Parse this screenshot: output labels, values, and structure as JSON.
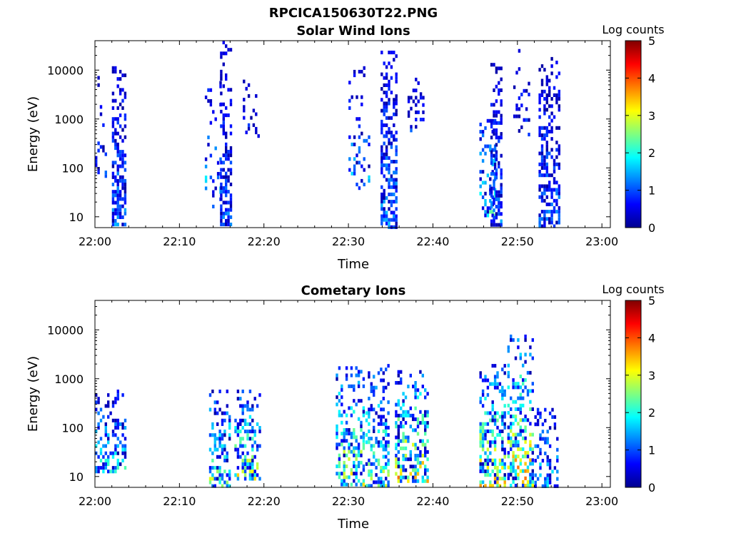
{
  "figure": {
    "title": "RPCICA150630T22.PNG"
  },
  "chart_data": [
    {
      "type": "heatmap",
      "title": "Solar Wind Ions",
      "xlabel": "Time",
      "ylabel": "Energy (eV)",
      "x_ticks": [
        "22:00",
        "22:10",
        "22:20",
        "22:30",
        "22:40",
        "22:50",
        "23:00"
      ],
      "x_range_min": [
        0,
        61
      ],
      "y_scale": "log",
      "y_ticks": [
        "10",
        "100",
        "1000",
        "10000"
      ],
      "y_range_eV": [
        6,
        40000
      ],
      "colorbar": {
        "label": "Log counts",
        "ticks": [
          "0",
          "1",
          "2",
          "3",
          "4",
          "5"
        ],
        "range": [
          0,
          5
        ],
        "colormap": "jet"
      },
      "bursts": [
        {
          "t_min": 0.0,
          "t_max": 1.5,
          "e_min": 60,
          "e_max": 9000,
          "peak": 1.2,
          "density": 0.12,
          "seed": 11
        },
        {
          "t_min": 2.0,
          "t_max": 3.6,
          "e_min": 6,
          "e_max": 12000,
          "peak": 1.4,
          "density": 0.55,
          "seed": 12
        },
        {
          "t_min": 13.0,
          "t_max": 15.0,
          "e_min": 15,
          "e_max": 6000,
          "peak": 2.0,
          "density": 0.15,
          "seed": 13
        },
        {
          "t_min": 14.8,
          "t_max": 16.3,
          "e_min": 6,
          "e_max": 40000,
          "peak": 1.3,
          "density": 0.5,
          "seed": 14
        },
        {
          "t_min": 17.5,
          "t_max": 19.5,
          "e_min": 400,
          "e_max": 9000,
          "peak": 1.0,
          "density": 0.2,
          "seed": 15
        },
        {
          "t_min": 30.0,
          "t_max": 32.5,
          "e_min": 35,
          "e_max": 12000,
          "peak": 1.8,
          "density": 0.18,
          "seed": 16
        },
        {
          "t_min": 33.8,
          "t_max": 35.8,
          "e_min": 6,
          "e_max": 25000,
          "peak": 1.5,
          "density": 0.55,
          "seed": 17
        },
        {
          "t_min": 37.0,
          "t_max": 39.0,
          "e_min": 500,
          "e_max": 7000,
          "peak": 1.0,
          "density": 0.22,
          "seed": 18
        },
        {
          "t_min": 45.5,
          "t_max": 47.5,
          "e_min": 10,
          "e_max": 1000,
          "peak": 2.4,
          "density": 0.35,
          "seed": 19
        },
        {
          "t_min": 46.8,
          "t_max": 48.2,
          "e_min": 6,
          "e_max": 14000,
          "peak": 1.4,
          "density": 0.55,
          "seed": 20
        },
        {
          "t_min": 49.5,
          "t_max": 51.5,
          "e_min": 400,
          "e_max": 32000,
          "peak": 1.0,
          "density": 0.18,
          "seed": 21
        },
        {
          "t_min": 52.5,
          "t_max": 55.0,
          "e_min": 6,
          "e_max": 22000,
          "peak": 1.3,
          "density": 0.5,
          "seed": 22
        }
      ]
    },
    {
      "type": "heatmap",
      "title": "Cometary Ions",
      "xlabel": "Time",
      "ylabel": "Energy (eV)",
      "x_ticks": [
        "22:00",
        "22:10",
        "22:20",
        "22:30",
        "22:40",
        "22:50",
        "23:00"
      ],
      "x_range_min": [
        0,
        61
      ],
      "y_scale": "log",
      "y_ticks": [
        "10",
        "100",
        "1000",
        "10000"
      ],
      "y_range_eV": [
        6,
        40000
      ],
      "colorbar": {
        "label": "Log counts",
        "ticks": [
          "0",
          "1",
          "2",
          "3",
          "4",
          "5"
        ],
        "range": [
          0,
          5
        ],
        "colormap": "jet"
      },
      "bursts": [
        {
          "t_min": 0.0,
          "t_max": 3.6,
          "e_min": 12,
          "e_max": 600,
          "peak": 2.2,
          "density": 0.42,
          "seed": 31
        },
        {
          "t_min": 13.5,
          "t_max": 16.0,
          "e_min": 6,
          "e_max": 600,
          "peak": 3.0,
          "density": 0.42,
          "seed": 32
        },
        {
          "t_min": 16.5,
          "t_max": 19.8,
          "e_min": 8,
          "e_max": 600,
          "peak": 3.3,
          "density": 0.45,
          "seed": 33
        },
        {
          "t_min": 28.5,
          "t_max": 32.0,
          "e_min": 6,
          "e_max": 1800,
          "peak": 3.4,
          "density": 0.45,
          "seed": 34
        },
        {
          "t_min": 32.0,
          "t_max": 35.0,
          "e_min": 6,
          "e_max": 2000,
          "peak": 3.0,
          "density": 0.45,
          "seed": 35
        },
        {
          "t_min": 35.5,
          "t_max": 39.5,
          "e_min": 8,
          "e_max": 1500,
          "peak": 3.8,
          "density": 0.48,
          "seed": 36
        },
        {
          "t_min": 45.5,
          "t_max": 48.8,
          "e_min": 6,
          "e_max": 2000,
          "peak": 3.6,
          "density": 0.48,
          "seed": 37
        },
        {
          "t_min": 48.8,
          "t_max": 52.0,
          "e_min": 6,
          "e_max": 8000,
          "peak": 4.0,
          "density": 0.48,
          "seed": 38
        },
        {
          "t_min": 52.0,
          "t_max": 55.0,
          "e_min": 6,
          "e_max": 300,
          "peak": 2.0,
          "density": 0.35,
          "seed": 39
        }
      ]
    }
  ]
}
